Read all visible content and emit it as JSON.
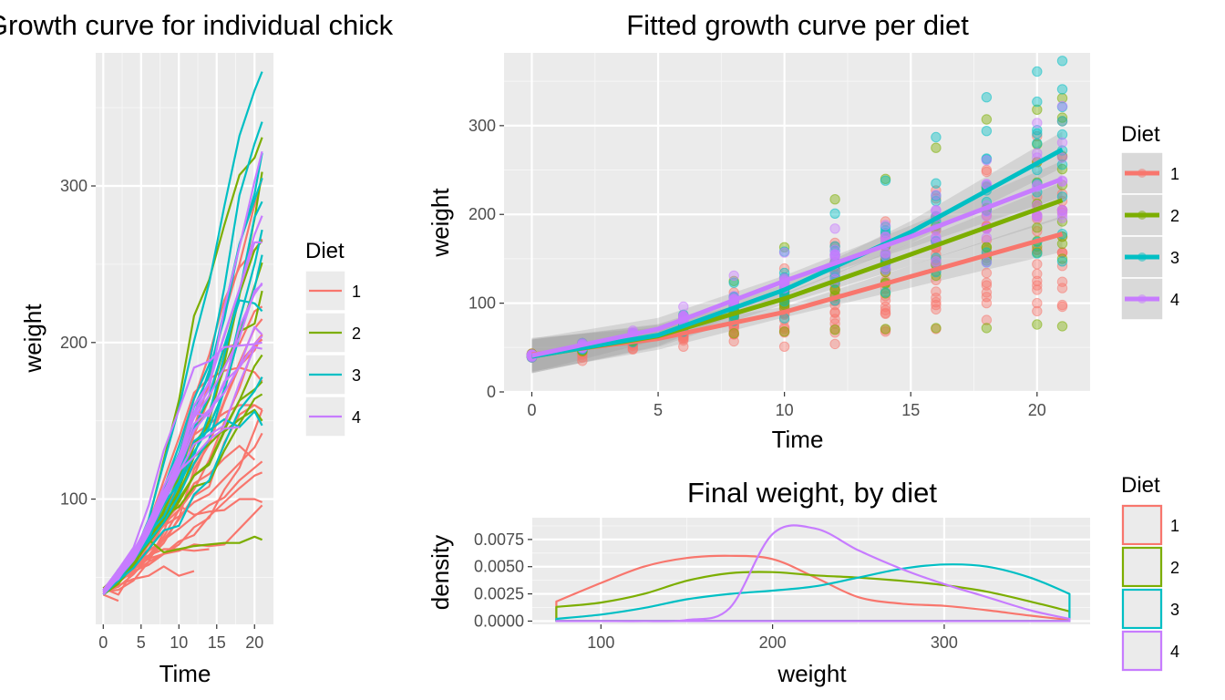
{
  "colors": {
    "1": "#F8766D",
    "2": "#7CAE00",
    "3": "#00BFC4",
    "4": "#C77CFF",
    "panel": "#EBEBEB",
    "grid": "#FFFFFF"
  },
  "chart_data": [
    {
      "type": "line",
      "title": "Growth curve for individual chick",
      "xlabel": "Time",
      "ylabel": "weight",
      "xlim": [
        -1,
        22.5
      ],
      "ylim": [
        20,
        385
      ],
      "xticks": [
        0,
        5,
        10,
        15,
        20
      ],
      "xtick_labels": [
        "0",
        "5",
        "10",
        "15",
        "20"
      ],
      "yticks": [
        100,
        200,
        300
      ],
      "ytick_labels": [
        "100",
        "200",
        "300"
      ],
      "grid": true,
      "legend": {
        "title": "Diet",
        "position": "right",
        "entries": [
          "1",
          "2",
          "3",
          "4"
        ]
      },
      "x": [
        0,
        2,
        4,
        6,
        8,
        10,
        12,
        14,
        16,
        18,
        20,
        21
      ],
      "series": [
        {
          "group": "1",
          "values": [
            42,
            51,
            59,
            64,
            76,
            93,
            106,
            125,
            149,
            171,
            199,
            205
          ]
        },
        {
          "group": "1",
          "values": [
            40,
            49,
            58,
            72,
            84,
            103,
            122,
            138,
            162,
            187,
            209,
            215
          ]
        },
        {
          "group": "1",
          "values": [
            43,
            39,
            55,
            67,
            84,
            99,
            115,
            138,
            163,
            187,
            198,
            202
          ]
        },
        {
          "group": "1",
          "values": [
            42,
            49,
            56,
            67,
            74,
            87,
            102,
            108,
            136,
            154,
            160,
            157
          ]
        },
        {
          "group": "1",
          "values": [
            41,
            42,
            48,
            60,
            79,
            106,
            141,
            164,
            197,
            199,
            220,
            223
          ]
        },
        {
          "group": "1",
          "values": [
            41,
            49,
            59,
            74,
            97,
            124,
            141,
            148,
            155,
            160,
            160,
            157
          ]
        },
        {
          "group": "1",
          "values": [
            41,
            49,
            57,
            71,
            89,
            112,
            146,
            174,
            218,
            250,
            288,
            305
          ]
        },
        {
          "group": "1",
          "values": [
            42,
            50,
            61,
            71,
            84,
            93,
            110,
            116,
            126,
            134,
            125,
            null
          ]
        },
        {
          "group": "1",
          "values": [
            42,
            51,
            59,
            68,
            85,
            96,
            90,
            92,
            93,
            100,
            100,
            98
          ]
        },
        {
          "group": "1",
          "values": [
            41,
            44,
            52,
            63,
            74,
            81,
            89,
            96,
            101,
            112,
            120,
            124
          ]
        },
        {
          "group": "1",
          "values": [
            43,
            51,
            63,
            84,
            112,
            139,
            168,
            177,
            182,
            184,
            181,
            175
          ]
        },
        {
          "group": "1",
          "values": [
            41,
            49,
            56,
            62,
            72,
            88,
            119,
            135,
            162,
            185,
            195,
            205
          ]
        },
        {
          "group": "1",
          "values": [
            41,
            48,
            53,
            60,
            65,
            67,
            71,
            70,
            71,
            81,
            91,
            96
          ]
        },
        {
          "group": "1",
          "values": [
            41,
            49,
            62,
            79,
            101,
            128,
            164,
            192,
            227,
            248,
            259,
            266
          ]
        },
        {
          "group": "1",
          "values": [
            41,
            49,
            56,
            64,
            68,
            68,
            67,
            68,
            null,
            null,
            null,
            null
          ]
        },
        {
          "group": "1",
          "values": [
            41,
            45,
            49,
            51,
            57,
            51,
            54,
            null,
            null,
            null,
            null,
            null
          ]
        },
        {
          "group": "1",
          "values": [
            42,
            51,
            61,
            72,
            83,
            89,
            98,
            103,
            113,
            123,
            133,
            142
          ]
        },
        {
          "group": "1",
          "values": [
            39,
            35,
            null,
            null,
            null,
            null,
            null,
            null,
            null,
            null,
            null,
            null
          ]
        },
        {
          "group": "1",
          "values": [
            43,
            48,
            55,
            62,
            65,
            71,
            82,
            88,
            106,
            120,
            144,
            157
          ]
        },
        {
          "group": "1",
          "values": [
            41,
            47,
            54,
            58,
            65,
            73,
            77,
            89,
            98,
            107,
            115,
            117
          ]
        },
        {
          "group": "2",
          "values": [
            40,
            50,
            62,
            86,
            125,
            163,
            217,
            240,
            275,
            307,
            318,
            331
          ]
        },
        {
          "group": "2",
          "values": [
            41,
            55,
            64,
            77,
            90,
            95,
            108,
            111,
            131,
            148,
            164,
            167
          ]
        },
        {
          "group": "2",
          "values": [
            43,
            52,
            61,
            73,
            90,
            103,
            127,
            135,
            145,
            163,
            170,
            175
          ]
        },
        {
          "group": "2",
          "values": [
            42,
            52,
            58,
            74,
            66,
            68,
            70,
            71,
            72,
            72,
            76,
            74
          ]
        },
        {
          "group": "2",
          "values": [
            40,
            49,
            62,
            78,
            102,
            124,
            146,
            164,
            197,
            231,
            259,
            265
          ]
        },
        {
          "group": "2",
          "values": [
            42,
            48,
            57,
            74,
            93,
            114,
            136,
            147,
            169,
            205,
            236,
            251
          ]
        },
        {
          "group": "2",
          "values": [
            39,
            46,
            58,
            73,
            87,
            100,
            115,
            123,
            144,
            163,
            185,
            192
          ]
        },
        {
          "group": "2",
          "values": [
            39,
            46,
            58,
            73,
            92,
            114,
            145,
            156,
            184,
            207,
            212,
            233
          ]
        },
        {
          "group": "2",
          "values": [
            39,
            48,
            59,
            74,
            87,
            106,
            134,
            150,
            187,
            230,
            279,
            309
          ]
        },
        {
          "group": "2",
          "values": [
            42,
            48,
            59,
            72,
            85,
            98,
            115,
            122,
            143,
            151,
            157,
            150
          ]
        },
        {
          "group": "3",
          "values": [
            42,
            53,
            62,
            73,
            85,
            102,
            123,
            138,
            170,
            204,
            235,
            256
          ]
        },
        {
          "group": "3",
          "values": [
            41,
            49,
            65,
            82,
            107,
            129,
            159,
            179,
            221,
            263,
            291,
            305
          ]
        },
        {
          "group": "3",
          "values": [
            39,
            50,
            63,
            77,
            96,
            111,
            137,
            144,
            151,
            146,
            156,
            147
          ]
        },
        {
          "group": "3",
          "values": [
            41,
            49,
            63,
            85,
            107,
            134,
            164,
            186,
            235,
            294,
            327,
            341
          ]
        },
        {
          "group": "3",
          "values": [
            41,
            53,
            64,
            87,
            123,
            158,
            201,
            238,
            287,
            332,
            361,
            373
          ]
        },
        {
          "group": "3",
          "values": [
            39,
            48,
            61,
            76,
            98,
            116,
            145,
            166,
            198,
            227,
            225,
            220
          ]
        },
        {
          "group": "3",
          "values": [
            41,
            48,
            56,
            68,
            80,
            83,
            103,
            112,
            135,
            157,
            169,
            178
          ]
        },
        {
          "group": "3",
          "values": [
            41,
            49,
            61,
            74,
            98,
            109,
            128,
            154,
            192,
            232,
            280,
            290
          ]
        },
        {
          "group": "3",
          "values": [
            42,
            50,
            61,
            78,
            89,
            109,
            130,
            146,
            170,
            214,
            250,
            272
          ]
        },
        {
          "group": "3",
          "values": [
            41,
            55,
            66,
            79,
            101,
            120,
            154,
            182,
            215,
            262,
            295,
            321
          ]
        },
        {
          "group": "4",
          "values": [
            42,
            51,
            66,
            85,
            103,
            124,
            155,
            153,
            175,
            184,
            199,
            204
          ]
        },
        {
          "group": "4",
          "values": [
            42,
            49,
            63,
            84,
            103,
            126,
            160,
            174,
            204,
            234,
            269,
            281
          ]
        },
        {
          "group": "4",
          "values": [
            42,
            55,
            69,
            96,
            131,
            157,
            184,
            188,
            197,
            198,
            199,
            200
          ]
        },
        {
          "group": "4",
          "values": [
            42,
            51,
            65,
            86,
            103,
            118,
            127,
            138,
            145,
            146,
            null,
            null
          ]
        },
        {
          "group": "4",
          "values": [
            41,
            50,
            61,
            78,
            98,
            117,
            135,
            141,
            147,
            174,
            197,
            196
          ]
        },
        {
          "group": "4",
          "values": [
            40,
            52,
            62,
            82,
            101,
            120,
            144,
            156,
            173,
            210,
            231,
            238
          ]
        },
        {
          "group": "4",
          "values": [
            41,
            53,
            66,
            79,
            100,
            123,
            148,
            157,
            168,
            185,
            210,
            205
          ]
        },
        {
          "group": "4",
          "values": [
            39,
            50,
            62,
            80,
            104,
            125,
            154,
            170,
            222,
            261,
            303,
            322
          ]
        },
        {
          "group": "4",
          "values": [
            40,
            53,
            64,
            85,
            108,
            128,
            152,
            166,
            184,
            203,
            233,
            237
          ]
        },
        {
          "group": "4",
          "values": [
            41,
            54,
            67,
            84,
            105,
            122,
            155,
            175,
            205,
            234,
            264,
            264
          ]
        }
      ]
    },
    {
      "type": "scatter",
      "title": "Fitted growth curve per diet",
      "xlabel": "Time",
      "ylabel": "weight",
      "xlim": [
        -1.1,
        22.1
      ],
      "ylim": [
        0,
        382
      ],
      "xticks": [
        0,
        5,
        10,
        15,
        20
      ],
      "xtick_labels": [
        "0",
        "5",
        "10",
        "15",
        "20"
      ],
      "yticks": [
        0,
        100,
        200,
        300
      ],
      "ytick_labels": [
        "0",
        "100",
        "200",
        "300"
      ],
      "grid": true,
      "legend": {
        "title": "Diet",
        "position": "right",
        "entries": [
          "1",
          "2",
          "3",
          "4"
        ]
      },
      "fits": [
        {
          "group": "1",
          "x": [
            0,
            5,
            10,
            15,
            21
          ],
          "y": [
            42,
            60,
            90,
            130,
            178
          ]
        },
        {
          "group": "2",
          "x": [
            0,
            5,
            10,
            15,
            21
          ],
          "y": [
            40,
            63,
            105,
            155,
            216
          ]
        },
        {
          "group": "3",
          "x": [
            0,
            5,
            10,
            15,
            21
          ],
          "y": [
            40,
            64,
            115,
            180,
            273
          ]
        },
        {
          "group": "4",
          "x": [
            0,
            5,
            10,
            15,
            21
          ],
          "y": [
            41,
            71,
            125,
            175,
            240
          ]
        }
      ],
      "points_from": "individual_chick_series"
    },
    {
      "type": "density",
      "title": "Final weight, by diet",
      "xlabel": "weight",
      "ylabel": "density",
      "xlim": [
        60,
        385
      ],
      "ylim": [
        -0.0003,
        0.0095
      ],
      "xticks": [
        100,
        200,
        300
      ],
      "xtick_labels": [
        "100",
        "200",
        "300"
      ],
      "yticks": [
        0,
        0.0025,
        0.005,
        0.0075
      ],
      "ytick_labels": [
        "0.0000",
        "0.0025",
        "0.0050",
        "0.0075"
      ],
      "grid": true,
      "legend": {
        "title": "Diet",
        "position": "right",
        "entries": [
          "1",
          "2",
          "3",
          "4"
        ]
      },
      "x": [
        74,
        100,
        125,
        150,
        175,
        200,
        225,
        250,
        275,
        300,
        325,
        350,
        373
      ],
      "series": [
        {
          "group": "1",
          "values": [
            0.0018,
            0.0035,
            0.005,
            0.0058,
            0.006,
            0.0057,
            0.004,
            0.0022,
            0.0016,
            0.0014,
            0.001,
            0.0005,
            0.0001
          ]
        },
        {
          "group": "2",
          "values": [
            0.0013,
            0.0017,
            0.0025,
            0.0037,
            0.0044,
            0.0045,
            0.0042,
            0.004,
            0.0037,
            0.0033,
            0.0027,
            0.0018,
            0.0009
          ]
        },
        {
          "group": "3",
          "values": [
            0.0002,
            0.0006,
            0.0012,
            0.002,
            0.0025,
            0.0028,
            0.0032,
            0.004,
            0.0048,
            0.0052,
            0.005,
            0.004,
            0.0025
          ]
        },
        {
          "group": "4",
          "values": [
            0.0,
            0.0,
            0.0,
            0.0001,
            0.0012,
            0.008,
            0.0085,
            0.0065,
            0.0048,
            0.0034,
            0.0022,
            0.001,
            0.0002
          ]
        }
      ]
    }
  ]
}
